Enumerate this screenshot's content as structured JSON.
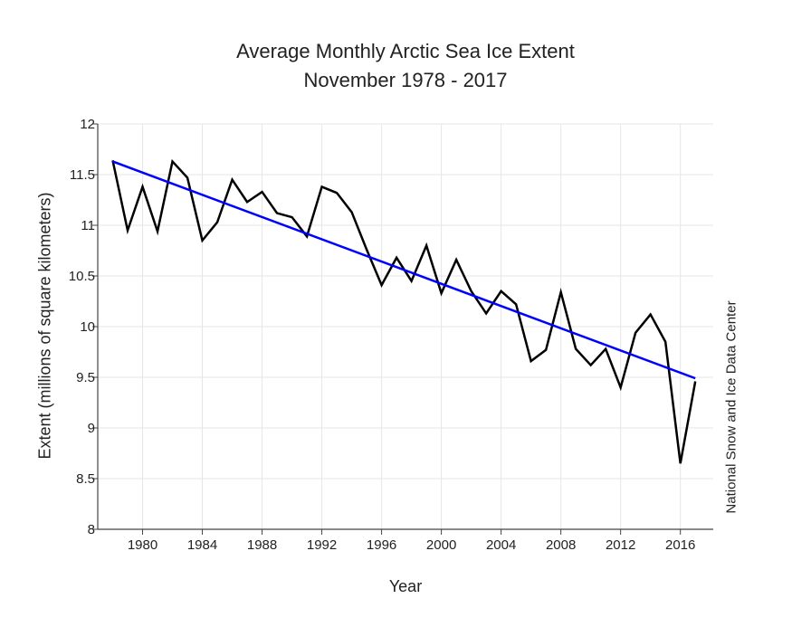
{
  "chart_data": {
    "type": "line",
    "title": "Average Monthly Arctic Sea Ice Extent",
    "subtitle": "November 1978 - 2017",
    "xlabel": "Year",
    "ylabel": "Extent (millions of square kilometers)",
    "source": "National Snow and Ice Data Center",
    "xlim": [
      1977,
      2018.2
    ],
    "ylim": [
      8,
      12
    ],
    "xticks": [
      1980,
      1984,
      1988,
      1992,
      1996,
      2000,
      2004,
      2008,
      2012,
      2016
    ],
    "yticks": [
      8,
      8.5,
      9,
      9.5,
      10,
      10.5,
      11,
      11.5,
      12
    ],
    "grid": true,
    "series": [
      {
        "color": "#000000",
        "x": [
          1978,
          1979,
          1980,
          1981,
          1982,
          1983,
          1984,
          1985,
          1986,
          1987,
          1988,
          1989,
          1990,
          1991,
          1992,
          1993,
          1994,
          1995,
          1996,
          1997,
          1998,
          1999,
          2000,
          2001,
          2002,
          2003,
          2004,
          2005,
          2006,
          2007,
          2008,
          2009,
          2010,
          2011,
          2012,
          2013,
          2014,
          2015,
          2016,
          2017
        ],
        "values": [
          11.64,
          10.95,
          11.38,
          10.94,
          11.63,
          11.47,
          10.85,
          11.03,
          11.45,
          11.23,
          11.33,
          11.12,
          11.08,
          10.89,
          11.38,
          11.32,
          11.13,
          10.76,
          10.41,
          10.68,
          10.45,
          10.8,
          10.33,
          10.66,
          10.35,
          10.13,
          10.35,
          10.22,
          9.66,
          9.77,
          10.34,
          9.78,
          9.62,
          9.78,
          9.4,
          9.94,
          10.12,
          9.85,
          8.65,
          9.46
        ]
      },
      {
        "color": "#0000ff",
        "x": [
          1978,
          2017
        ],
        "values": [
          11.63,
          9.49
        ]
      }
    ]
  }
}
